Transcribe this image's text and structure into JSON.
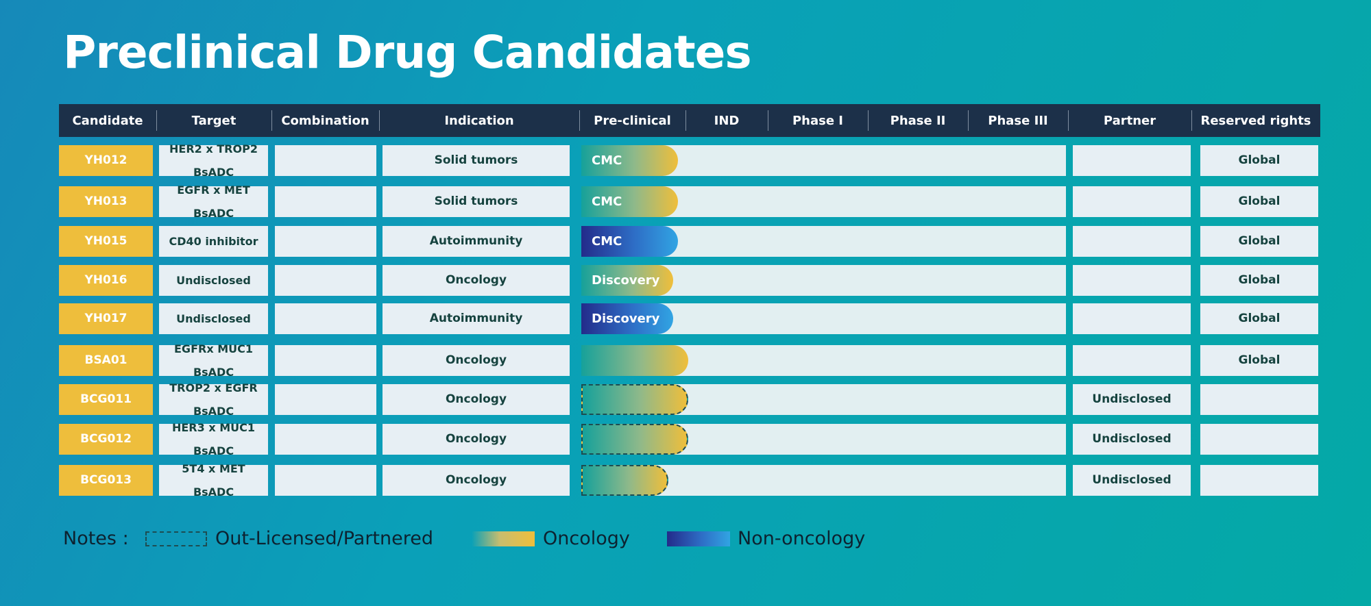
{
  "title": "Preclinical Drug Candidates",
  "columns": {
    "candidate": "Candidate",
    "target": "Target",
    "combination": "Combination",
    "indication": "Indication",
    "preclinical": "Pre-clinical",
    "ind": "IND",
    "phase1": "Phase I",
    "phase2": "Phase II",
    "phase3": "Phase III",
    "partner": "Partner",
    "rights": "Reserved rights"
  },
  "rows": [
    {
      "candidate": "YH012",
      "target_line1": "HER2 x TROP2",
      "target_line2": "BsADC",
      "combination": "",
      "indication": "Solid tumors",
      "bar_label": "CMC",
      "category": "oncology",
      "out_licensed": false,
      "bar_extent": 0.2,
      "partner": "",
      "rights": "Global"
    },
    {
      "candidate": "YH013",
      "target_line1": "EGFR x MET",
      "target_line2": "BsADC",
      "combination": "",
      "indication": "Solid tumors",
      "bar_label": "CMC",
      "category": "oncology",
      "out_licensed": false,
      "bar_extent": 0.2,
      "partner": "",
      "rights": "Global"
    },
    {
      "candidate": "YH015",
      "target_line1": "CD40 inhibitor",
      "target_line2": "",
      "combination": "",
      "indication": "Autoimmunity",
      "bar_label": "CMC",
      "category": "non-oncology",
      "out_licensed": false,
      "bar_extent": 0.2,
      "partner": "",
      "rights": "Global"
    },
    {
      "candidate": "YH016",
      "target_line1": "Undisclosed",
      "target_line2": "",
      "combination": "",
      "indication": "Oncology",
      "bar_label": "Discovery",
      "category": "oncology",
      "out_licensed": false,
      "bar_extent": 0.19,
      "partner": "",
      "rights": "Global"
    },
    {
      "candidate": "YH017",
      "target_line1": "Undisclosed",
      "target_line2": "",
      "combination": "",
      "indication": "Autoimmunity",
      "bar_label": "Discovery",
      "category": "non-oncology",
      "out_licensed": false,
      "bar_extent": 0.19,
      "partner": "",
      "rights": "Global"
    },
    {
      "candidate": "BSA01",
      "target_line1": "EGFRx MUC1",
      "target_line2": "BsADC",
      "combination": "",
      "indication": "Oncology",
      "bar_label": "",
      "category": "oncology",
      "out_licensed": false,
      "bar_extent": 0.22,
      "partner": "",
      "rights": "Global"
    },
    {
      "candidate": "BCG011",
      "target_line1": "TROP2 x EGFR",
      "target_line2": "BsADC",
      "combination": "",
      "indication": "Oncology",
      "bar_label": "",
      "category": "oncology",
      "out_licensed": true,
      "bar_extent": 0.22,
      "partner": "Undisclosed",
      "rights": ""
    },
    {
      "candidate": "BCG012",
      "target_line1": "HER3 x MUC1",
      "target_line2": "BsADC",
      "combination": "",
      "indication": "Oncology",
      "bar_label": "",
      "category": "oncology",
      "out_licensed": true,
      "bar_extent": 0.22,
      "partner": "Undisclosed",
      "rights": ""
    },
    {
      "candidate": "BCG013",
      "target_line1": "5T4 x MET",
      "target_line2": "BsADC",
      "combination": "",
      "indication": "Oncology",
      "bar_label": "",
      "category": "oncology",
      "out_licensed": true,
      "bar_extent": 0.18,
      "partner": "Undisclosed",
      "rights": ""
    }
  ],
  "legend": {
    "notes_label": "Notes :",
    "out_licensed": "Out-Licensed/Partnered",
    "oncology": "Oncology",
    "non_oncology": "Non-oncology"
  },
  "colors": {
    "candidate_bg": "#eebe3c",
    "header_bg": "#1c3049",
    "oncology_start": "#16a19a",
    "oncology_end": "#efbe3b",
    "non_oncology_start": "#232b8a",
    "non_oncology_end": "#31a4e3"
  }
}
